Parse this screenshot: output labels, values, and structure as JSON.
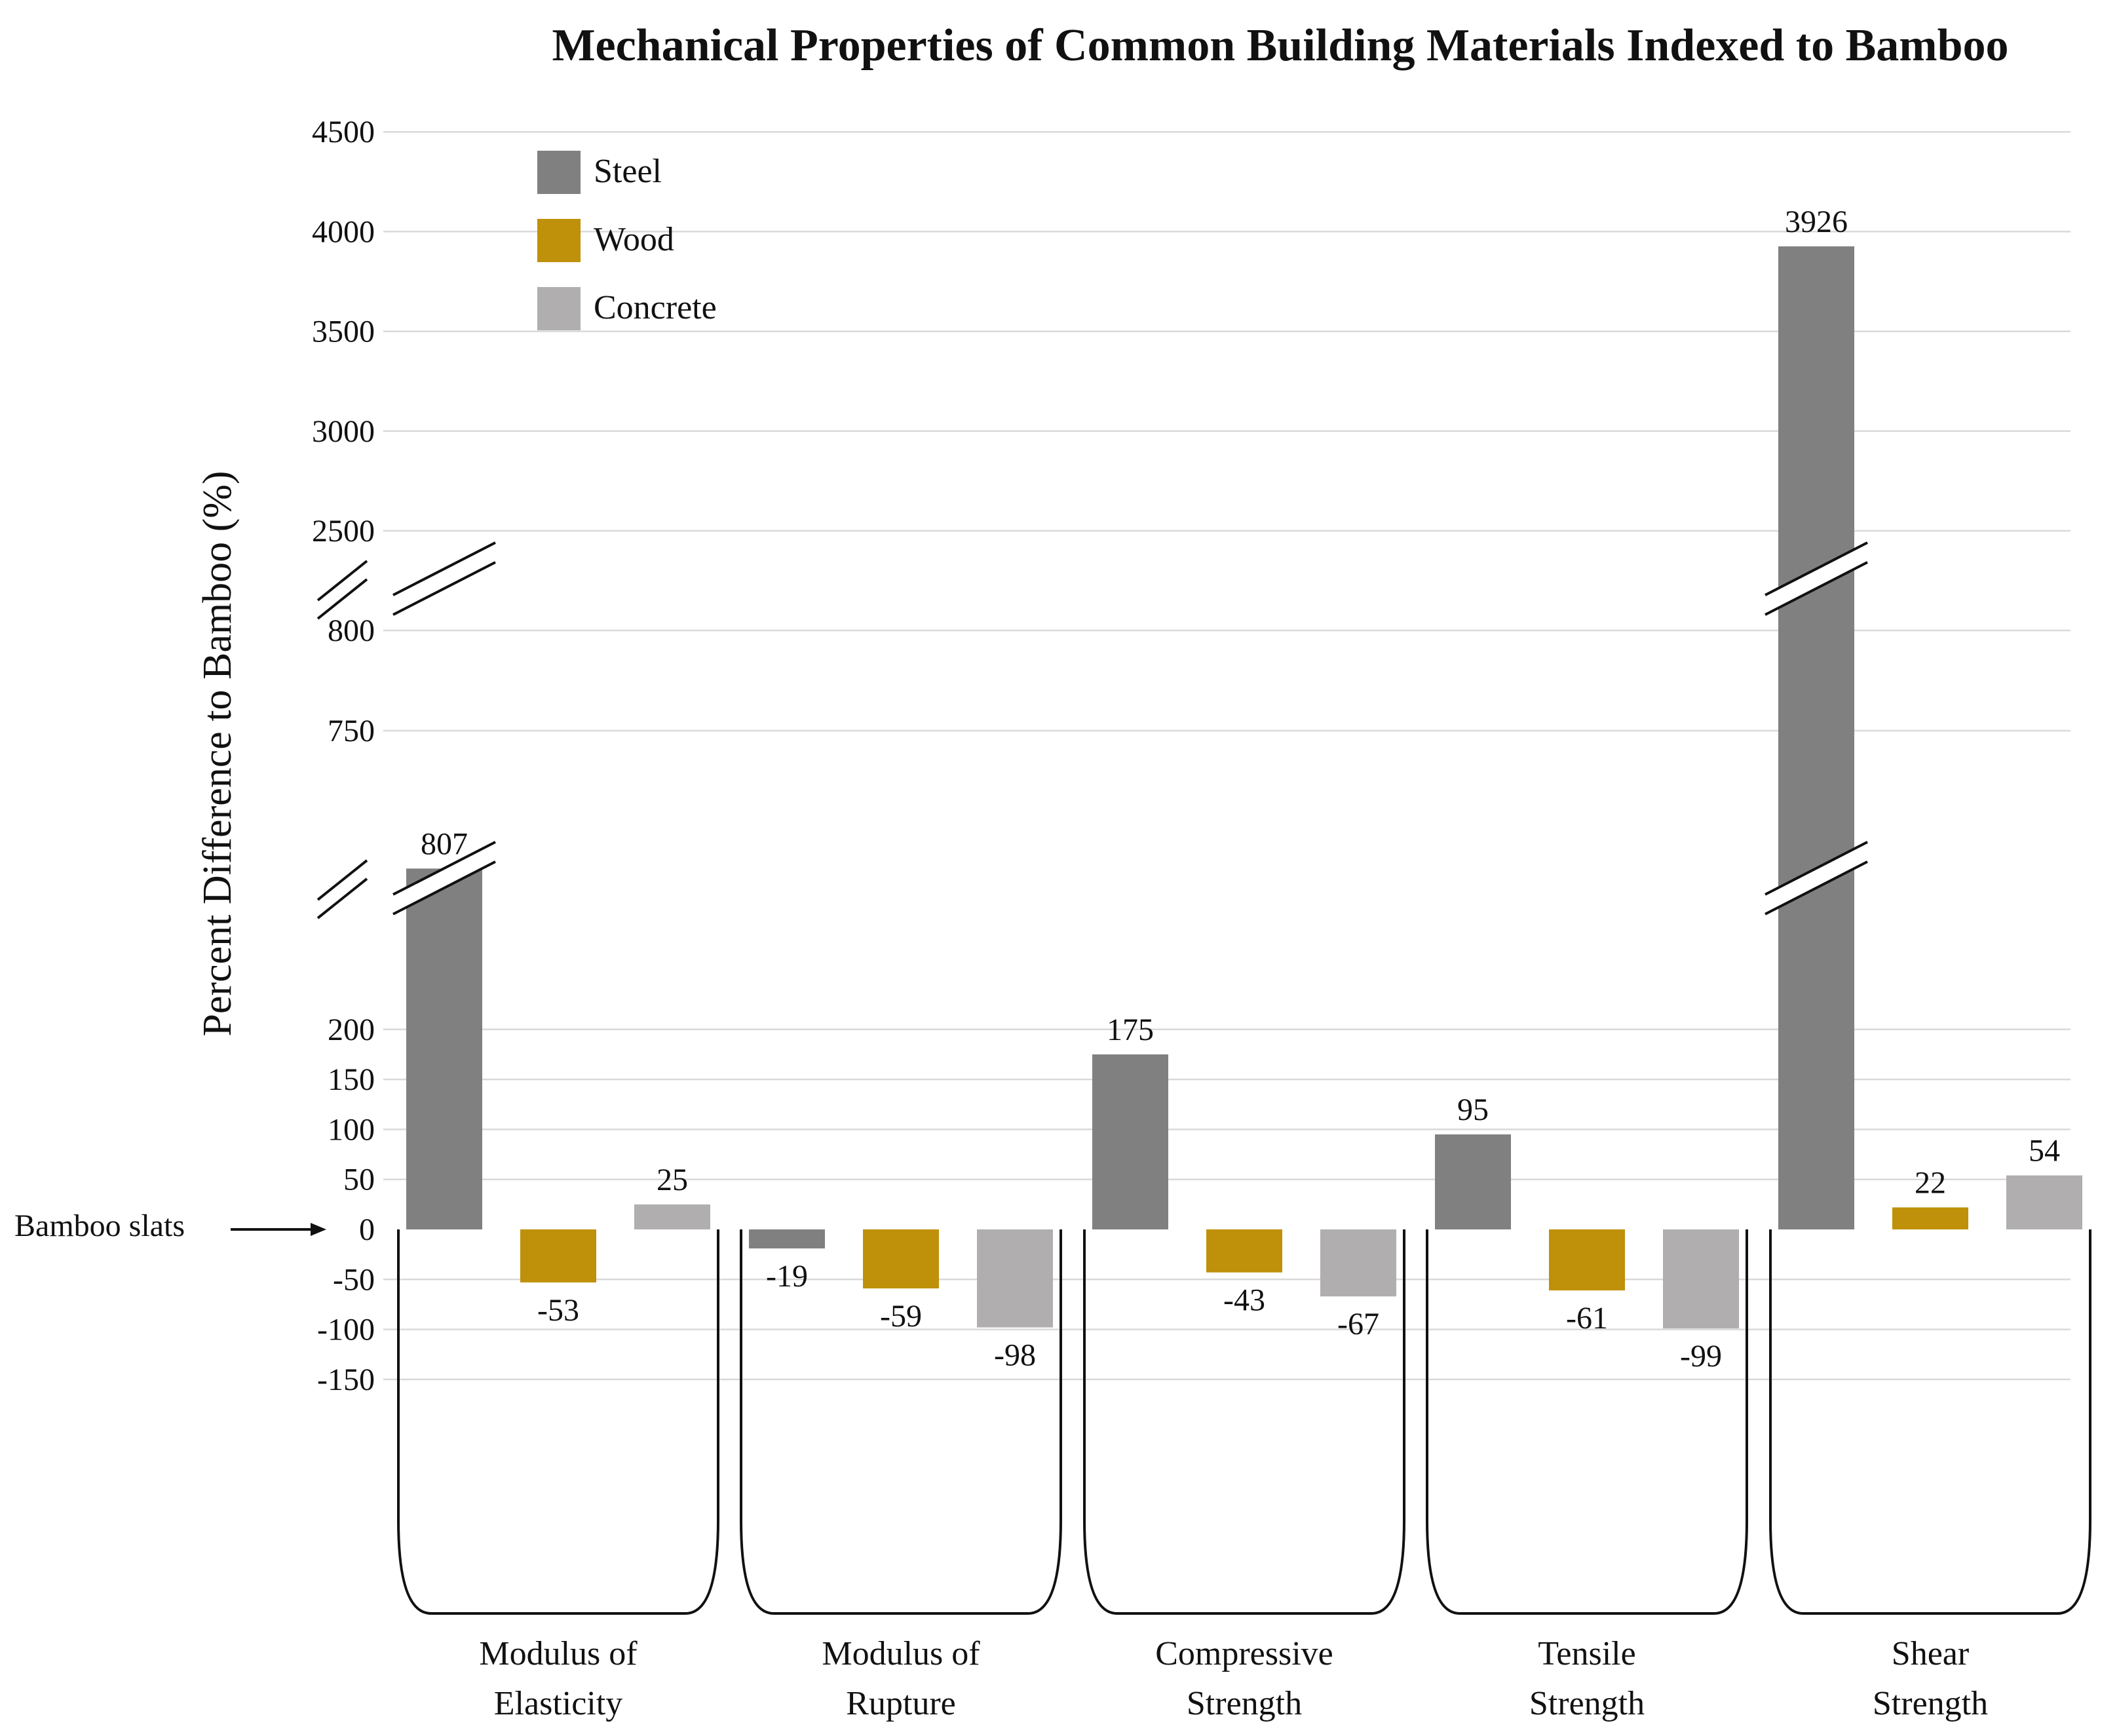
{
  "colors": {
    "steel": "#808080",
    "wood": "#bf9009",
    "concrete": "#b0aeae",
    "grid": "#d9d9d9",
    "text": "#111111"
  },
  "chart_data": {
    "type": "bar",
    "title": "Mechanical Properties of Common Building Materials Indexed to Bamboo",
    "ylabel": "Percent Difference to Bamboo (%)",
    "xlabel": "",
    "baseline_label": "Bamboo slats",
    "legend_position": "top-left",
    "grid": true,
    "broken_axis": true,
    "axis_segments": [
      {
        "range": [
          -150,
          200
        ]
      },
      {
        "range": [
          750,
          800
        ]
      },
      {
        "range": [
          2500,
          4500
        ]
      }
    ],
    "y_ticks": [
      4500,
      4000,
      3500,
      3000,
      2500,
      800,
      750,
      200,
      150,
      100,
      50,
      0,
      -50,
      -100,
      -150
    ],
    "categories": [
      [
        "Modulus of",
        "Elasticity"
      ],
      [
        "Modulus of",
        "Rupture"
      ],
      [
        "Compressive",
        "Strength"
      ],
      [
        "Tensile",
        "Strength"
      ],
      [
        "Shear",
        "Strength"
      ]
    ],
    "series": [
      {
        "name": "Steel",
        "color_key": "steel",
        "values": [
          807,
          -19,
          175,
          95,
          3926
        ]
      },
      {
        "name": "Wood",
        "color_key": "wood",
        "values": [
          -53,
          -59,
          -43,
          -61,
          22
        ]
      },
      {
        "name": "Concrete",
        "color_key": "concrete",
        "values": [
          25,
          -98,
          -67,
          -99,
          54
        ]
      }
    ]
  }
}
